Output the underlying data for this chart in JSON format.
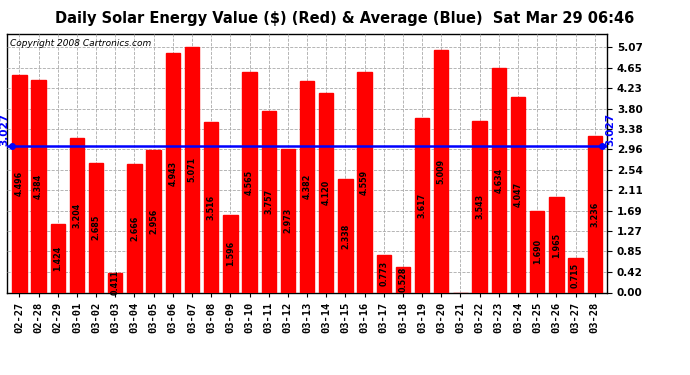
{
  "title": "Daily Solar Energy Value ($) (Red) & Average (Blue)  Sat Mar 29 06:46",
  "copyright": "Copyright 2008 Cartronics.com",
  "average": 3.027,
  "categories": [
    "02-27",
    "02-28",
    "02-29",
    "03-01",
    "03-02",
    "03-03",
    "03-04",
    "03-05",
    "03-06",
    "03-07",
    "03-08",
    "03-09",
    "03-10",
    "03-11",
    "03-12",
    "03-13",
    "03-14",
    "03-15",
    "03-16",
    "03-17",
    "03-18",
    "03-19",
    "03-20",
    "03-21",
    "03-22",
    "03-23",
    "03-24",
    "03-25",
    "03-26",
    "03-27",
    "03-28"
  ],
  "values": [
    4.496,
    4.384,
    1.424,
    3.204,
    2.685,
    0.411,
    2.666,
    2.956,
    4.943,
    5.071,
    3.516,
    1.596,
    4.565,
    3.757,
    2.973,
    4.382,
    4.12,
    2.338,
    4.559,
    0.773,
    0.528,
    3.617,
    5.009,
    0.0,
    3.543,
    4.634,
    4.047,
    1.69,
    1.965,
    0.715,
    3.236
  ],
  "bar_color": "#ff0000",
  "avg_line_color": "#0000ff",
  "background_color": "#ffffff",
  "grid_color": "#aaaaaa",
  "text_color": "#000000",
  "ylim": [
    0.0,
    5.35
  ],
  "yticks": [
    0.0,
    0.42,
    0.85,
    1.27,
    1.69,
    2.11,
    2.54,
    2.96,
    3.38,
    3.8,
    4.23,
    4.65,
    5.07
  ],
  "title_fontsize": 10.5,
  "tick_fontsize": 7.5,
  "bar_label_fontsize": 5.8,
  "avg_fontsize": 7.5,
  "copyright_fontsize": 6.5
}
